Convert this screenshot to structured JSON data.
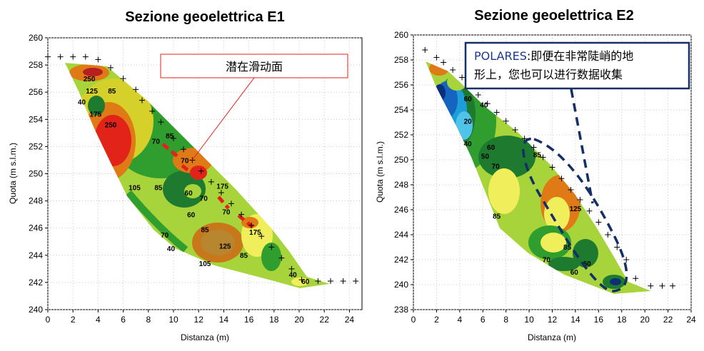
{
  "chart_data": [
    {
      "type": "contour",
      "title": "Sezione geoelettrica E1",
      "xlabel": "Distanza (m)",
      "ylabel": "Quota (m s.l.m.)",
      "xlim": [
        0,
        25
      ],
      "ylim": [
        240,
        260
      ],
      "xticks": [
        "0",
        "2",
        "4",
        "6",
        "8",
        "10",
        "12",
        "14",
        "16",
        "18",
        "20",
        "22",
        "24"
      ],
      "yticks": [
        "240",
        "242",
        "244",
        "246",
        "248",
        "250",
        "252",
        "254",
        "256",
        "258",
        "260"
      ],
      "electrodes": [
        {
          "x": 0,
          "y": 258.6
        },
        {
          "x": 1,
          "y": 258.6
        },
        {
          "x": 2,
          "y": 258.6
        },
        {
          "x": 3,
          "y": 258.6
        },
        {
          "x": 4,
          "y": 258.4
        },
        {
          "x": 5,
          "y": 257.8
        },
        {
          "x": 6,
          "y": 257.0
        },
        {
          "x": 7,
          "y": 256.2
        },
        {
          "x": 7.5,
          "y": 255.4
        },
        {
          "x": 8.3,
          "y": 254.6
        },
        {
          "x": 9,
          "y": 253.8
        },
        {
          "x": 10,
          "y": 252.6
        },
        {
          "x": 10.8,
          "y": 251.8
        },
        {
          "x": 11.5,
          "y": 251.0
        },
        {
          "x": 12.2,
          "y": 250.2
        },
        {
          "x": 13,
          "y": 249.4
        },
        {
          "x": 13.8,
          "y": 248.6
        },
        {
          "x": 14.6,
          "y": 247.8
        },
        {
          "x": 15.4,
          "y": 247.0
        },
        {
          "x": 16.2,
          "y": 246.2
        },
        {
          "x": 17,
          "y": 245.4
        },
        {
          "x": 17.8,
          "y": 244.6
        },
        {
          "x": 18.6,
          "y": 243.8
        },
        {
          "x": 19.4,
          "y": 243.0
        },
        {
          "x": 20.2,
          "y": 242.2
        },
        {
          "x": 21.5,
          "y": 242.1
        },
        {
          "x": 22.5,
          "y": 242.1
        },
        {
          "x": 23.5,
          "y": 242.1
        },
        {
          "x": 24.5,
          "y": 242.1
        }
      ],
      "contour_labels": [
        {
          "text": "250",
          "x": 3.3,
          "y": 256.8
        },
        {
          "text": "125",
          "x": 3.5,
          "y": 255.9
        },
        {
          "text": "85",
          "x": 5.1,
          "y": 255.9
        },
        {
          "text": "40",
          "x": 2.7,
          "y": 255.1
        },
        {
          "text": "175",
          "x": 3.8,
          "y": 254.2
        },
        {
          "text": "250",
          "x": 5.0,
          "y": 253.4
        },
        {
          "text": "70",
          "x": 8.6,
          "y": 252.2
        },
        {
          "text": "85",
          "x": 9.7,
          "y": 252.6
        },
        {
          "text": "70",
          "x": 10.9,
          "y": 250.8
        },
        {
          "text": "175",
          "x": 13.9,
          "y": 248.9
        },
        {
          "text": "105",
          "x": 6.9,
          "y": 248.8
        },
        {
          "text": "85",
          "x": 8.8,
          "y": 248.8
        },
        {
          "text": "60",
          "x": 11.2,
          "y": 248.4
        },
        {
          "text": "70",
          "x": 12.4,
          "y": 248.0
        },
        {
          "text": "60",
          "x": 11.4,
          "y": 246.8
        },
        {
          "text": "85",
          "x": 12.5,
          "y": 245.7
        },
        {
          "text": "70",
          "x": 14.2,
          "y": 247.0
        },
        {
          "text": "125",
          "x": 14.1,
          "y": 244.5
        },
        {
          "text": "70",
          "x": 9.3,
          "y": 245.3
        },
        {
          "text": "40",
          "x": 9.8,
          "y": 244.3
        },
        {
          "text": "175",
          "x": 16.5,
          "y": 245.5
        },
        {
          "text": "85",
          "x": 15.6,
          "y": 243.8
        },
        {
          "text": "105",
          "x": 12.5,
          "y": 243.2
        },
        {
          "text": "40",
          "x": 19.5,
          "y": 242.4
        },
        {
          "text": "60",
          "x": 20.5,
          "y": 241.9
        }
      ]
    },
    {
      "type": "contour",
      "title": "Sezione geoelettrica E2",
      "xlabel": "Distanza (m)",
      "ylabel": "Quota (m s.l.m.)",
      "xlim": [
        0,
        24
      ],
      "ylim": [
        238,
        260
      ],
      "xticks": [
        "0",
        "2",
        "4",
        "6",
        "8",
        "10",
        "12",
        "14",
        "16",
        "18",
        "20",
        "22",
        "24"
      ],
      "yticks": [
        "238",
        "240",
        "242",
        "244",
        "246",
        "248",
        "250",
        "252",
        "254",
        "256",
        "258",
        "260"
      ],
      "electrodes": [
        {
          "x": 1,
          "y": 258.8
        },
        {
          "x": 2,
          "y": 258.2
        },
        {
          "x": 2.6,
          "y": 257.8
        },
        {
          "x": 3.4,
          "y": 257.2
        },
        {
          "x": 4.2,
          "y": 256.6
        },
        {
          "x": 4.8,
          "y": 255.9
        },
        {
          "x": 5.6,
          "y": 255.2
        },
        {
          "x": 6.4,
          "y": 254.5
        },
        {
          "x": 7.2,
          "y": 253.8
        },
        {
          "x": 8,
          "y": 253.1
        },
        {
          "x": 8.8,
          "y": 252.4
        },
        {
          "x": 9.6,
          "y": 251.7
        },
        {
          "x": 10.4,
          "y": 251.0
        },
        {
          "x": 11.2,
          "y": 250.2
        },
        {
          "x": 12,
          "y": 249.4
        },
        {
          "x": 12.8,
          "y": 248.5
        },
        {
          "x": 13.6,
          "y": 247.6
        },
        {
          "x": 14.4,
          "y": 246.8
        },
        {
          "x": 15.2,
          "y": 245.9
        },
        {
          "x": 16,
          "y": 245.0
        },
        {
          "x": 16.8,
          "y": 244.0
        },
        {
          "x": 17.6,
          "y": 243.0
        },
        {
          "x": 18.4,
          "y": 242.0
        },
        {
          "x": 19.2,
          "y": 240.5
        },
        {
          "x": 20.5,
          "y": 239.9
        },
        {
          "x": 21.5,
          "y": 239.9
        },
        {
          "x": 22.4,
          "y": 239.9
        }
      ],
      "contour_labels": [
        {
          "text": "60",
          "x": 4.7,
          "y": 254.7
        },
        {
          "text": "40",
          "x": 6.1,
          "y": 254.2
        },
        {
          "text": "20",
          "x": 4.7,
          "y": 252.9
        },
        {
          "text": "40",
          "x": 4.7,
          "y": 251.1
        },
        {
          "text": "50",
          "x": 6.2,
          "y": 250.1
        },
        {
          "text": "60",
          "x": 6.7,
          "y": 250.8
        },
        {
          "text": "70",
          "x": 7.1,
          "y": 249.3
        },
        {
          "text": "85",
          "x": 10.7,
          "y": 250.2
        },
        {
          "text": "85",
          "x": 7.2,
          "y": 245.3
        },
        {
          "text": "125",
          "x": 14.0,
          "y": 245.9
        },
        {
          "text": "85",
          "x": 13.3,
          "y": 242.8
        },
        {
          "text": "70",
          "x": 11.5,
          "y": 241.8
        },
        {
          "text": "60",
          "x": 13.9,
          "y": 240.8
        },
        {
          "text": "60",
          "x": 15.0,
          "y": 241.5
        }
      ]
    }
  ],
  "annotations": {
    "e1_callout": "潜在滑动面",
    "e2_callout_brand": "POLARES",
    "e2_callout_line1": ":即便在非常陡峭的地",
    "e2_callout_line2": "形上，您也可以进行数据收集"
  }
}
